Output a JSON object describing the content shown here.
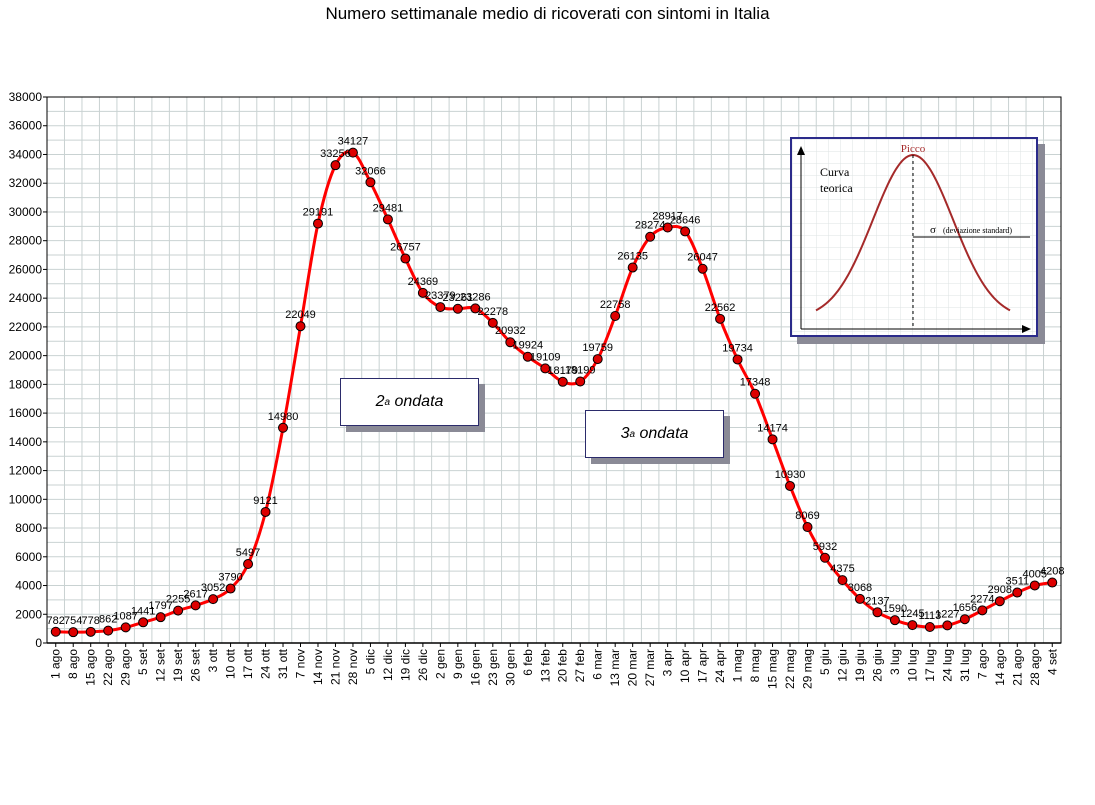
{
  "chart_data": {
    "type": "line",
    "title": "Numero settimanale medio di ricoverati con sintomi in Italia",
    "xlabel": "",
    "ylabel": "",
    "ylim": [
      0,
      38000
    ],
    "ytick_step": 2000,
    "grid": true,
    "line_color": "#ff0000",
    "marker_color": "#dd0000",
    "categories": [
      "1 ago",
      "8 ago",
      "15 ago",
      "22 ago",
      "29 ago",
      "5 set",
      "12 set",
      "19 set",
      "26 set",
      "3 ott",
      "10 ott",
      "17 ott",
      "24 ott",
      "31 ott",
      "7 nov",
      "14 nov",
      "21 nov",
      "28 nov",
      "5 dic",
      "12 dic",
      "19 dic",
      "26 dic",
      "2 gen",
      "9 gen",
      "16 gen",
      "23 gen",
      "30 gen",
      "6 feb",
      "13 feb",
      "20 feb",
      "27 feb",
      "6 mar",
      "13 mar",
      "20 mar",
      "27 mar",
      "3 apr",
      "10 apr",
      "17 apr",
      "24 apr",
      "1 mag",
      "8 mag",
      "15 mag",
      "22 mag",
      "29 mag",
      "5 giu",
      "12 giu",
      "19 giu",
      "26 giu",
      "3 lug",
      "10 lug",
      "17 lug",
      "24 lug",
      "31 lug",
      "7 ago",
      "14 ago",
      "21 ago",
      "28 ago",
      "4 set"
    ],
    "series": [
      {
        "values": [
          782,
          754,
          778,
          862,
          1087,
          1441,
          1797,
          2255,
          2617,
          3052,
          3790,
          5497,
          9121,
          14980,
          22049,
          29191,
          33256,
          34127,
          32066,
          29481,
          26757,
          24369,
          23379,
          23261,
          23286,
          22278,
          20932,
          19924,
          19109,
          18179,
          18199,
          19759,
          22758,
          26135,
          28274,
          28917,
          28646,
          26047,
          22562,
          19734,
          17348,
          14174,
          10930,
          8069,
          5932,
          4375,
          3068,
          2137,
          1590,
          1245,
          1113,
          1227,
          1656,
          2274,
          2908,
          3511,
          4005,
          4208
        ],
        "labels": [
          "782",
          "754",
          "778",
          "862",
          "1087",
          "1441",
          "1797",
          "2255",
          "2617",
          "3052",
          "3790",
          "5497",
          "9121",
          "14980",
          "22049",
          "29191",
          "33256",
          "34127",
          "32066",
          "29481",
          "26757",
          "24369",
          "23379",
          "23261",
          "23286",
          "22278",
          "20932",
          "19924",
          "19109",
          "18179",
          "18199",
          "19759",
          "22758",
          "26135",
          "28274",
          "28917",
          "28646",
          "26047",
          "22562",
          "19734",
          "17348",
          "14174",
          "10930",
          "8069",
          "5932",
          "4375",
          "3068",
          "2137",
          "1590",
          "1245",
          "1113",
          "1227",
          "1656",
          "2274",
          "2908",
          "3511",
          "4005",
          "4208"
        ]
      }
    ],
    "annotations": [
      {
        "id": "wave2",
        "text_base": "2",
        "text_sup": "a",
        "text_rest": " ondata"
      },
      {
        "id": "wave3",
        "text_base": "3",
        "text_sup": "a",
        "text_rest": " ondata"
      }
    ],
    "inset": {
      "peak_label": "Picco",
      "curve_label_line1": "Curva",
      "curve_label_line2": "teorica",
      "sigma_symbol": "σ",
      "sigma_label": "(deviazione standard)",
      "curve_color": "#a52a2a"
    }
  }
}
